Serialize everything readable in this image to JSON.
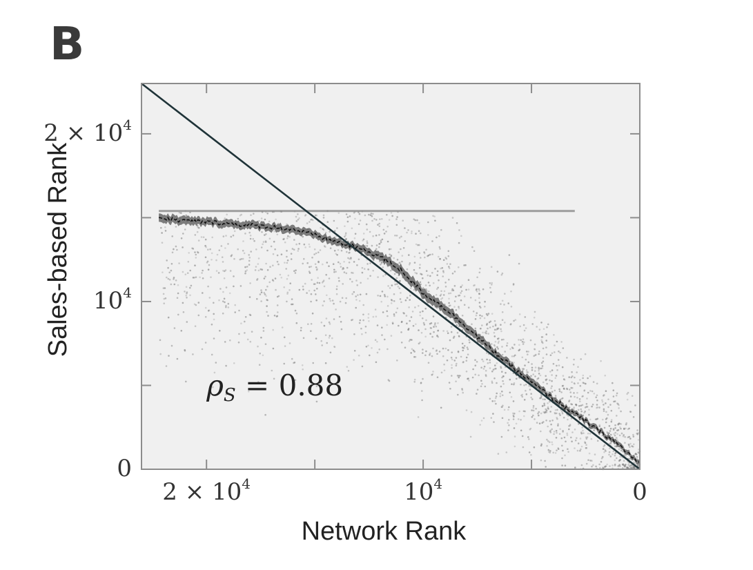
{
  "chart_data": {
    "type": "scatter",
    "panel_label": "B",
    "xlabel": "Network Rank",
    "ylabel": "Sales-based Rank",
    "xlim": [
      23000,
      0
    ],
    "ylim": [
      23000,
      0
    ],
    "x_inverted": true,
    "y_inverted": true,
    "x_ticks": [
      {
        "value": 20000,
        "label": "2 × 10",
        "sup": "4"
      },
      {
        "value": 15000,
        "label": "",
        "sup": ""
      },
      {
        "value": 10000,
        "label": "10",
        "sup": "4"
      },
      {
        "value": 5000,
        "label": "",
        "sup": ""
      },
      {
        "value": 0,
        "label": "0",
        "sup": ""
      }
    ],
    "y_ticks": [
      {
        "value": 0,
        "label": "0",
        "sup": ""
      },
      {
        "value": 5000,
        "label": "",
        "sup": ""
      },
      {
        "value": 10000,
        "label": "10",
        "sup": "4"
      },
      {
        "value": 15000,
        "label": "",
        "sup": ""
      },
      {
        "value": 20000,
        "label": "2 × 10",
        "sup": "4"
      }
    ],
    "annotation": {
      "symbol": "ρ",
      "subscript": "S",
      "text": " = 0.88",
      "x": 20000,
      "y": 4400
    },
    "grid": false,
    "series": [
      {
        "kind": "diagonal",
        "x": [
          23000,
          0
        ],
        "y": [
          23000,
          0
        ]
      },
      {
        "kind": "mean-line-with-band",
        "x": [
          22200,
          21000,
          20000,
          19000,
          18000,
          17000,
          16000,
          15000,
          14000,
          13000,
          12000,
          11000,
          10000,
          9000,
          8000,
          7000,
          6000,
          5000,
          4000,
          3000,
          2000,
          1000,
          0
        ],
        "y": [
          15000,
          14800,
          14750,
          14650,
          14550,
          14450,
          14300,
          13950,
          13550,
          13200,
          12700,
          11850,
          10500,
          9600,
          8500,
          7300,
          6200,
          5200,
          4200,
          3300,
          2400,
          1500,
          300
        ],
        "band_halfwidth": [
          250,
          250,
          230,
          230,
          230,
          230,
          230,
          220,
          220,
          220,
          260,
          300,
          300,
          280,
          260,
          240,
          220,
          200,
          180,
          170,
          160,
          150,
          140
        ]
      },
      {
        "kind": "floor-points",
        "y": 15400,
        "x_range": [
          22200,
          3000
        ]
      }
    ]
  }
}
